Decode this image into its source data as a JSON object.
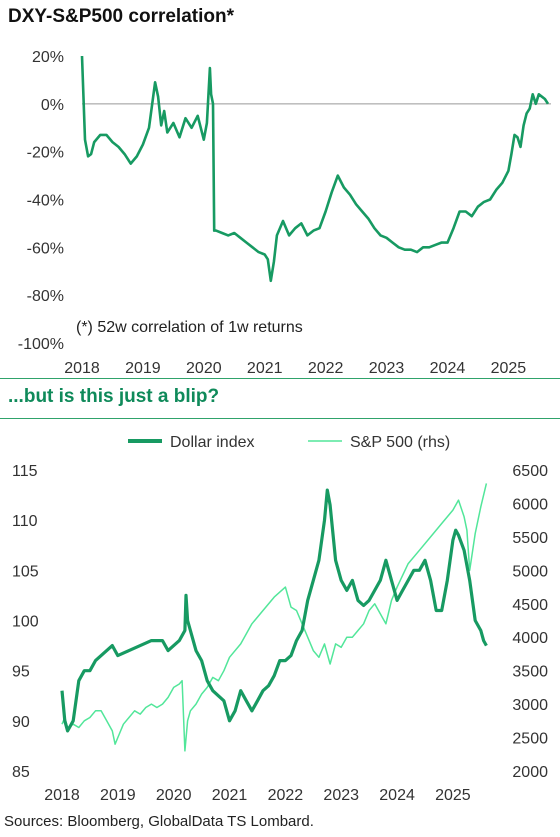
{
  "charts": {
    "top_title": "DXY-S&P500 correlation*",
    "top_note": "(*) 52w correlation of 1w returns",
    "bottom_title": "...but is this just a blip?",
    "source": "Sources: Bloomberg, GlobalData TS Lombard."
  },
  "colors": {
    "dark_green": "#179a62",
    "light_green": "#52e69a",
    "zero_line": "#999999",
    "title_green": "#0f8a5a"
  },
  "chart_data": [
    {
      "type": "line",
      "title": "DXY-S&P500 correlation*",
      "annotation": "(*) 52w correlation of 1w returns",
      "x_ticks": [
        "2018",
        "2019",
        "2020",
        "2021",
        "2022",
        "2023",
        "2024",
        "2025"
      ],
      "y_ticks": [
        "20%",
        "0%",
        "-20%",
        "-40%",
        "-60%",
        "-80%",
        "-100%"
      ],
      "ylim": [
        -100,
        20
      ],
      "xlim": [
        2018.0,
        2025.7
      ],
      "reference_line": 0,
      "series": [
        {
          "x": [
            2018.0,
            2018.05,
            2018.1,
            2018.15,
            2018.2,
            2018.3,
            2018.4,
            2018.5,
            2018.6,
            2018.7,
            2018.8,
            2018.9,
            2019.0,
            2019.1,
            2019.2,
            2019.25,
            2019.3,
            2019.35,
            2019.4,
            2019.5,
            2019.6,
            2019.7,
            2019.8,
            2019.9,
            2020.0,
            2020.05,
            2020.1,
            2020.12,
            2020.15,
            2020.17,
            2020.2,
            2020.3,
            2020.4,
            2020.5,
            2020.6,
            2020.7,
            2020.8,
            2020.9,
            2021.0,
            2021.05,
            2021.1,
            2021.15,
            2021.2,
            2021.3,
            2021.4,
            2021.5,
            2021.6,
            2021.7,
            2021.8,
            2021.9,
            2022.0,
            2022.1,
            2022.2,
            2022.3,
            2022.4,
            2022.5,
            2022.6,
            2022.7,
            2022.8,
            2022.9,
            2023.0,
            2023.1,
            2023.2,
            2023.3,
            2023.4,
            2023.5,
            2023.6,
            2023.7,
            2023.8,
            2023.9,
            2024.0,
            2024.1,
            2024.2,
            2024.3,
            2024.4,
            2024.5,
            2024.6,
            2024.7,
            2024.8,
            2024.9,
            2025.0,
            2025.05,
            2025.1,
            2025.15,
            2025.2,
            2025.25,
            2025.3,
            2025.35,
            2025.4,
            2025.45,
            2025.5,
            2025.55,
            2025.6,
            2025.65
          ],
          "y": [
            20,
            -15,
            -22,
            -21,
            -16,
            -13,
            -13,
            -16,
            -18,
            -21,
            -25,
            -22,
            -17,
            -10,
            9,
            3,
            -9,
            -3,
            -12,
            -8,
            -14,
            -6,
            -10,
            -5,
            -15,
            -8,
            15,
            4,
            0,
            -53,
            -53,
            -54,
            -55,
            -54,
            -56,
            -58,
            -60,
            -62,
            -63,
            -65,
            -74,
            -66,
            -55,
            -49,
            -55,
            -52,
            -50,
            -55,
            -53,
            -52,
            -45,
            -37,
            -30,
            -35,
            -38,
            -42,
            -45,
            -48,
            -52,
            -55,
            -56,
            -58,
            -60,
            -61,
            -61,
            -62,
            -60,
            -60,
            -59,
            -58,
            -58,
            -52,
            -45,
            -45,
            -47,
            -43,
            -41,
            -40,
            -36,
            -33,
            -28,
            -21,
            -13,
            -14,
            -18,
            -9,
            -4,
            -2,
            4,
            0,
            4,
            3,
            2,
            0
          ]
        }
      ]
    },
    {
      "type": "line",
      "title": "...but is this just a blip?",
      "x_ticks": [
        "2018",
        "2019",
        "2020",
        "2021",
        "2022",
        "2023",
        "2024",
        "2025"
      ],
      "y_ticks_left": [
        "115",
        "110",
        "105",
        "100",
        "95",
        "90",
        "85"
      ],
      "y_ticks_right": [
        "6500",
        "6000",
        "5500",
        "5000",
        "4500",
        "4000",
        "3500",
        "3000",
        "2500",
        "2000"
      ],
      "ylim_left": [
        85,
        115
      ],
      "ylim_right": [
        2000,
        6500
      ],
      "xlim": [
        2018.0,
        2025.7
      ],
      "series": [
        {
          "name": "Dollar index",
          "axis": "left",
          "x": [
            2018.0,
            2018.05,
            2018.1,
            2018.15,
            2018.2,
            2018.3,
            2018.4,
            2018.5,
            2018.6,
            2018.7,
            2018.8,
            2018.9,
            2019.0,
            2019.2,
            2019.4,
            2019.6,
            2019.8,
            2019.9,
            2020.0,
            2020.1,
            2020.2,
            2020.22,
            2020.25,
            2020.3,
            2020.4,
            2020.5,
            2020.6,
            2020.7,
            2020.8,
            2020.9,
            2021.0,
            2021.1,
            2021.2,
            2021.3,
            2021.4,
            2021.5,
            2021.6,
            2021.7,
            2021.8,
            2021.9,
            2022.0,
            2022.1,
            2022.2,
            2022.3,
            2022.4,
            2022.5,
            2022.6,
            2022.7,
            2022.75,
            2022.8,
            2022.9,
            2023.0,
            2023.1,
            2023.2,
            2023.3,
            2023.4,
            2023.5,
            2023.6,
            2023.7,
            2023.8,
            2023.9,
            2024.0,
            2024.1,
            2024.2,
            2024.3,
            2024.4,
            2024.5,
            2024.6,
            2024.7,
            2024.8,
            2024.9,
            2025.0,
            2025.05,
            2025.1,
            2025.2,
            2025.3,
            2025.4,
            2025.5,
            2025.55,
            2025.6
          ],
          "y": [
            93,
            90,
            89,
            89.5,
            90,
            94,
            95,
            95,
            96,
            96.5,
            97,
            97.5,
            96.5,
            97,
            97.5,
            98,
            98,
            97,
            97.5,
            98,
            99,
            102.5,
            100,
            99,
            97,
            96,
            94,
            93,
            92.5,
            92,
            90,
            91,
            93,
            92,
            91,
            92,
            93,
            93.5,
            94.5,
            96,
            96,
            96.5,
            98,
            99,
            102,
            104,
            106,
            110,
            113,
            111.5,
            106,
            104,
            103,
            104,
            102,
            101.5,
            102,
            103,
            104,
            106,
            104,
            102,
            103,
            104,
            105,
            105,
            106,
            104,
            101,
            101,
            104,
            108,
            109,
            108.5,
            107,
            104,
            100,
            99,
            98,
            97.5
          ]
        },
        {
          "name": "S&P 500 (rhs)",
          "axis": "right",
          "x": [
            2018.0,
            2018.05,
            2018.1,
            2018.2,
            2018.3,
            2018.4,
            2018.5,
            2018.6,
            2018.7,
            2018.8,
            2018.9,
            2018.95,
            2019.0,
            2019.1,
            2019.2,
            2019.3,
            2019.4,
            2019.5,
            2019.6,
            2019.7,
            2019.8,
            2019.9,
            2020.0,
            2020.1,
            2020.15,
            2020.2,
            2020.25,
            2020.3,
            2020.4,
            2020.5,
            2020.6,
            2020.7,
            2020.8,
            2020.9,
            2021.0,
            2021.2,
            2021.4,
            2021.6,
            2021.8,
            2022.0,
            2022.1,
            2022.2,
            2022.3,
            2022.4,
            2022.5,
            2022.6,
            2022.7,
            2022.8,
            2022.9,
            2023.0,
            2023.1,
            2023.2,
            2023.3,
            2023.4,
            2023.5,
            2023.6,
            2023.7,
            2023.8,
            2023.9,
            2024.0,
            2024.2,
            2024.4,
            2024.6,
            2024.8,
            2025.0,
            2025.1,
            2025.2,
            2025.25,
            2025.3,
            2025.4,
            2025.5,
            2025.6
          ],
          "y": [
            2700,
            2800,
            2650,
            2700,
            2650,
            2750,
            2800,
            2900,
            2900,
            2750,
            2600,
            2400,
            2500,
            2700,
            2800,
            2900,
            2850,
            2950,
            3000,
            2950,
            3000,
            3100,
            3250,
            3300,
            3350,
            2300,
            2750,
            2900,
            3000,
            3150,
            3250,
            3400,
            3350,
            3500,
            3700,
            3900,
            4200,
            4400,
            4600,
            4750,
            4450,
            4400,
            4200,
            4000,
            3800,
            3700,
            3900,
            3600,
            3900,
            3850,
            4000,
            4000,
            4100,
            4200,
            4400,
            4500,
            4350,
            4200,
            4550,
            4750,
            5100,
            5300,
            5500,
            5700,
            5900,
            6050,
            5800,
            5600,
            5000,
            5550,
            5950,
            6300
          ]
        }
      ]
    }
  ]
}
